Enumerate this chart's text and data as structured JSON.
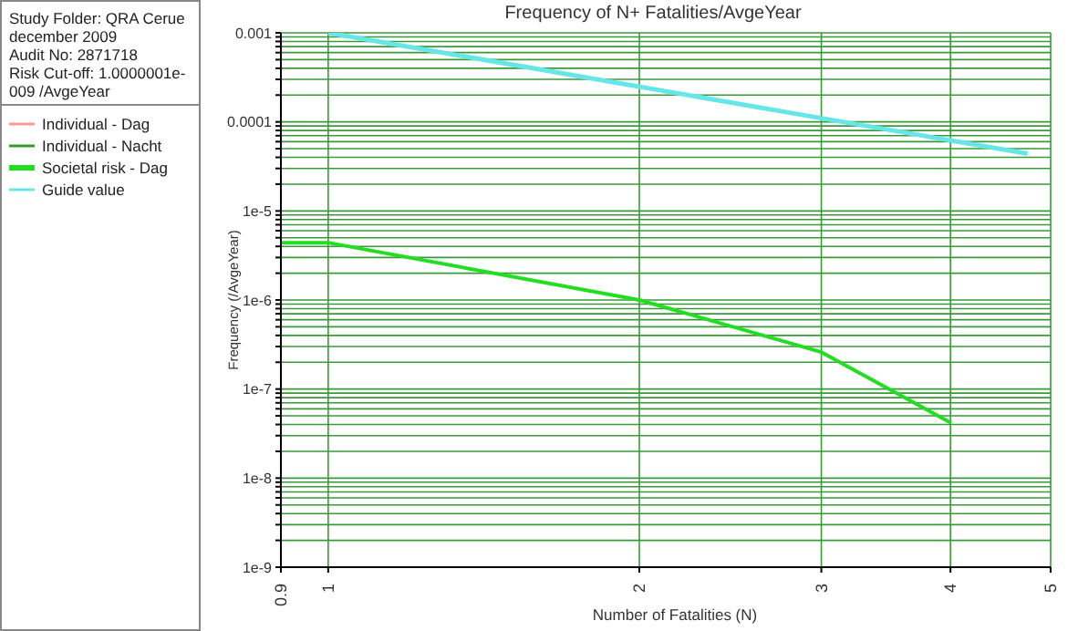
{
  "chart_data": {
    "type": "line",
    "title": "Frequency of N+ Fatalities/AvgeYear",
    "xlabel": "Number of Fatalities (N)",
    "ylabel": "Frequency (/AvgeYear)",
    "annotations": [
      "Study Folder: QRA Cerue",
      "december 2009",
      "Audit No: 2871718",
      "Risk Cut-off: 1.0000001e-009 /AvgeYear"
    ],
    "log": "xy",
    "grid": true,
    "legend": "left",
    "line_style": "solid",
    "marker": "none",
    "xlim": [
      0.9,
      5
    ],
    "xticks": [
      0.9,
      1,
      2,
      3,
      4,
      5
    ],
    "ylim": [
      1e-09,
      0.001
    ],
    "yticks": [
      {
        "value": 1e-09,
        "label": "1e-9"
      },
      {
        "value": 2e-09,
        "label": null
      },
      {
        "value": 3e-09,
        "label": null
      },
      {
        "value": 4e-09,
        "label": null
      },
      {
        "value": 5e-09,
        "label": null
      },
      {
        "value": 6e-09,
        "label": null
      },
      {
        "value": 7e-09,
        "label": null
      },
      {
        "value": 8e-09,
        "label": null
      },
      {
        "value": 9e-09,
        "label": null
      },
      {
        "value": 1e-08,
        "label": "1e-8"
      },
      {
        "value": 2e-08,
        "label": null
      },
      {
        "value": 3e-08,
        "label": null
      },
      {
        "value": 4e-08,
        "label": null
      },
      {
        "value": 5e-08,
        "label": null
      },
      {
        "value": 6e-08,
        "label": null
      },
      {
        "value": 7e-08,
        "label": null
      },
      {
        "value": 8e-08,
        "label": null
      },
      {
        "value": 9e-08,
        "label": null
      },
      {
        "value": 1e-07,
        "label": "1e-7"
      },
      {
        "value": 2e-07,
        "label": null
      },
      {
        "value": 3e-07,
        "label": null
      },
      {
        "value": 4e-07,
        "label": null
      },
      {
        "value": 5e-07,
        "label": null
      },
      {
        "value": 6e-07,
        "label": null
      },
      {
        "value": 7e-07,
        "label": null
      },
      {
        "value": 8e-07,
        "label": null
      },
      {
        "value": 9e-07,
        "label": null
      },
      {
        "value": 1e-06,
        "label": "1e-6"
      },
      {
        "value": 2e-06,
        "label": null
      },
      {
        "value": 3e-06,
        "label": null
      },
      {
        "value": 4e-06,
        "label": null
      },
      {
        "value": 5e-06,
        "label": null
      },
      {
        "value": 6e-06,
        "label": null
      },
      {
        "value": 7e-06,
        "label": null
      },
      {
        "value": 8e-06,
        "label": null
      },
      {
        "value": 9e-06,
        "label": null
      },
      {
        "value": 1e-05,
        "label": "1e-5"
      },
      {
        "value": 2e-05,
        "label": null
      },
      {
        "value": 3e-05,
        "label": null
      },
      {
        "value": 4e-05,
        "label": null
      },
      {
        "value": 5e-05,
        "label": null
      },
      {
        "value": 6e-05,
        "label": null
      },
      {
        "value": 7e-05,
        "label": null
      },
      {
        "value": 8e-05,
        "label": null
      },
      {
        "value": 9e-05,
        "label": null
      },
      {
        "value": 0.0001,
        "label": "0.0001"
      },
      {
        "value": 0.0002,
        "label": null
      },
      {
        "value": 0.0003,
        "label": null
      },
      {
        "value": 0.0004,
        "label": null
      },
      {
        "value": 0.0005,
        "label": null
      },
      {
        "value": 0.0006,
        "label": null
      },
      {
        "value": 0.0007,
        "label": null
      },
      {
        "value": 0.0008,
        "label": null
      },
      {
        "value": 0.0009,
        "label": null
      },
      {
        "value": 0.001,
        "label": "0.001"
      }
    ],
    "series": [
      {
        "name": "Individual - Dag",
        "color": "#ff9999"
      },
      {
        "name": "Individual - Nacht",
        "color": "#339933"
      },
      {
        "name": "Societal risk - Dag",
        "color": "#22dd22",
        "x": [
          0.9,
          1,
          2,
          3,
          4
        ],
        "values": [
          4.4e-06,
          4.4e-06,
          1e-06,
          2.6e-07,
          4.2e-08
        ]
      },
      {
        "name": "Guide value",
        "color": "#66e6e6",
        "x": [
          1,
          3,
          4.75
        ],
        "values": [
          0.001,
          0.00011,
          4.4e-05
        ]
      }
    ]
  }
}
